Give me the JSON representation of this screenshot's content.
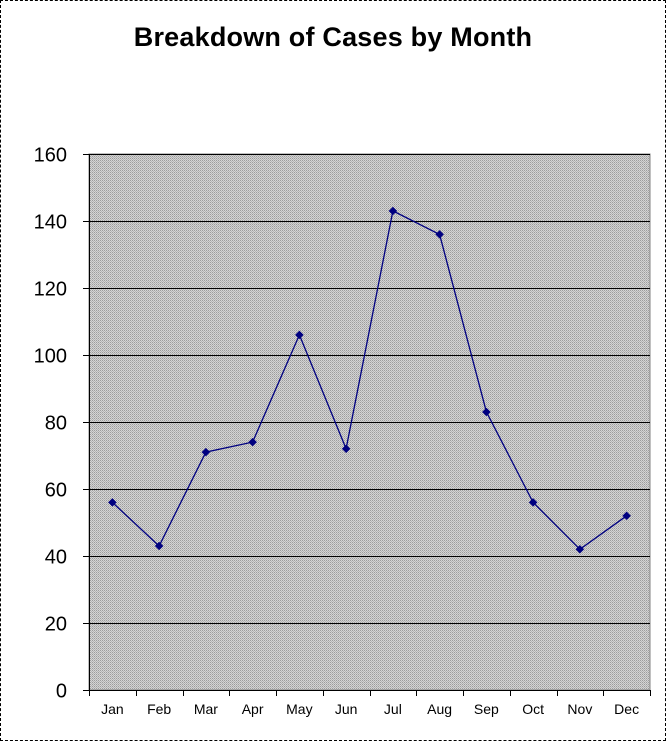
{
  "chart_data": {
    "type": "line",
    "title": "Breakdown of Cases by Month",
    "xlabel": "",
    "ylabel": "",
    "categories": [
      "Jan",
      "Feb",
      "Mar",
      "Apr",
      "May",
      "Jun",
      "Jul",
      "Aug",
      "Sep",
      "Oct",
      "Nov",
      "Dec"
    ],
    "series": [
      {
        "values": [
          56,
          43,
          71,
          74,
          106,
          72,
          143,
          136,
          83,
          56,
          42,
          52
        ],
        "color": "#000080",
        "marker": "diamond"
      }
    ],
    "ylim": [
      0,
      160
    ],
    "yticks": [
      0,
      20,
      40,
      60,
      80,
      100,
      120,
      140,
      160
    ],
    "grid": true,
    "legend": "none",
    "plot_background": "#c0c0c0",
    "gridline_color": "#000000"
  }
}
